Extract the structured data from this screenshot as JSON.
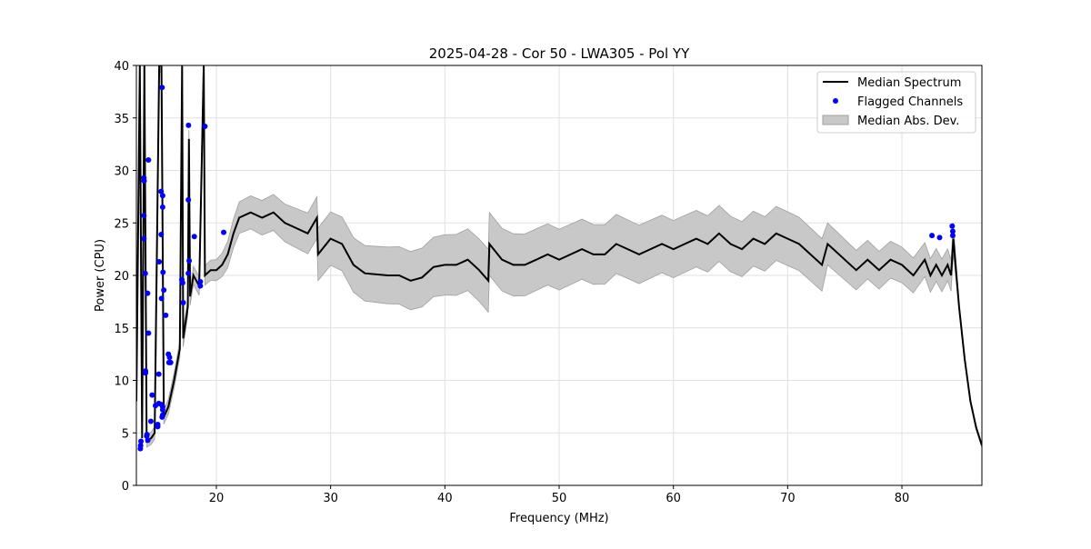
{
  "chart_data": {
    "type": "line",
    "title": "2025-04-28 - Cor 50 - LWA305 - Pol YY",
    "xlabel": "Frequency (MHz)",
    "ylabel": "Power (CPU)",
    "xlim": [
      13,
      87
    ],
    "ylim": [
      0,
      40
    ],
    "xticks": [
      20,
      30,
      40,
      50,
      60,
      70,
      80
    ],
    "yticks": [
      0,
      5,
      10,
      15,
      20,
      25,
      30,
      35,
      40
    ],
    "grid": true,
    "legend_position": "top-right",
    "legend": [
      "Median Spectrum",
      "Flagged Channels",
      "Median Abs. Dev."
    ],
    "colors": {
      "median": "#000000",
      "flagged": "#0000ff",
      "mad": "#c8c8c8"
    },
    "median_spectrum": [
      [
        13.0,
        8
      ],
      [
        13.3,
        40
      ],
      [
        13.5,
        4.5
      ],
      [
        13.7,
        40
      ],
      [
        13.9,
        4.2
      ],
      [
        14.3,
        4.5
      ],
      [
        14.6,
        5
      ],
      [
        15.0,
        40
      ],
      [
        15.2,
        40
      ],
      [
        15.4,
        6.5
      ],
      [
        15.8,
        7.5
      ],
      [
        16.3,
        10
      ],
      [
        16.8,
        13
      ],
      [
        17.0,
        40
      ],
      [
        17.1,
        14
      ],
      [
        17.5,
        17
      ],
      [
        17.6,
        33
      ],
      [
        17.7,
        18
      ],
      [
        18,
        20
      ],
      [
        18.5,
        19
      ],
      [
        18.9,
        40
      ],
      [
        19.0,
        20
      ],
      [
        19.5,
        20.5
      ],
      [
        20,
        20.5
      ],
      [
        20.5,
        21
      ],
      [
        21,
        22
      ],
      [
        21.5,
        24
      ],
      [
        22,
        25.5
      ],
      [
        23,
        26
      ],
      [
        24,
        25.5
      ],
      [
        25,
        26
      ],
      [
        26,
        25
      ],
      [
        27,
        24.5
      ],
      [
        28,
        24
      ],
      [
        28.8,
        25.5
      ],
      [
        28.9,
        22
      ],
      [
        30,
        23.5
      ],
      [
        31,
        23
      ],
      [
        32,
        21
      ],
      [
        33,
        20.2
      ],
      [
        35,
        20
      ],
      [
        36,
        20
      ],
      [
        37,
        19.5
      ],
      [
        38,
        19.8
      ],
      [
        39,
        20.8
      ],
      [
        40,
        21
      ],
      [
        41,
        21
      ],
      [
        42,
        21.5
      ],
      [
        43,
        20.5
      ],
      [
        43.8,
        19.5
      ],
      [
        43.9,
        23
      ],
      [
        45,
        21.5
      ],
      [
        46,
        21
      ],
      [
        47,
        21
      ],
      [
        48,
        21.5
      ],
      [
        49,
        22
      ],
      [
        50,
        21.5
      ],
      [
        51,
        22
      ],
      [
        52,
        22.5
      ],
      [
        53,
        22
      ],
      [
        54,
        22
      ],
      [
        55,
        23
      ],
      [
        56,
        22.5
      ],
      [
        57,
        22
      ],
      [
        58,
        22.5
      ],
      [
        59,
        23
      ],
      [
        60,
        22.5
      ],
      [
        61,
        23
      ],
      [
        62,
        23.5
      ],
      [
        63,
        23
      ],
      [
        64,
        24
      ],
      [
        65,
        23
      ],
      [
        66,
        22.5
      ],
      [
        67,
        23.5
      ],
      [
        68,
        23
      ],
      [
        69,
        24
      ],
      [
        70,
        23.5
      ],
      [
        71,
        23
      ],
      [
        72,
        22
      ],
      [
        73,
        21
      ],
      [
        73.5,
        23
      ],
      [
        74,
        22.5
      ],
      [
        75,
        21.5
      ],
      [
        76,
        20.5
      ],
      [
        77,
        21.5
      ],
      [
        78,
        20.5
      ],
      [
        79,
        21.5
      ],
      [
        80,
        21
      ],
      [
        81,
        20
      ],
      [
        82,
        21.5
      ],
      [
        82.5,
        20
      ],
      [
        83,
        21
      ],
      [
        83.5,
        20
      ],
      [
        84,
        21
      ],
      [
        84.3,
        20
      ],
      [
        84.5,
        23.5
      ],
      [
        85,
        17
      ],
      [
        85.5,
        12
      ],
      [
        86,
        8
      ],
      [
        86.5,
        5.5
      ],
      [
        87,
        3.8
      ]
    ],
    "mad_halfwidth": [
      [
        13,
        0.5
      ],
      [
        20,
        1
      ],
      [
        22,
        1.5
      ],
      [
        28.8,
        2
      ],
      [
        28.9,
        2.5
      ],
      [
        43.8,
        3
      ],
      [
        43.9,
        3
      ],
      [
        73.4,
        2.5
      ],
      [
        73.5,
        2
      ],
      [
        84.5,
        1.5
      ],
      [
        85,
        0.2
      ],
      [
        87,
        0.2
      ]
    ],
    "flagged_channels": [
      [
        15.25,
        37.9
      ],
      [
        17.56,
        34.3
      ],
      [
        19.0,
        34.2
      ],
      [
        14.06,
        31.0
      ],
      [
        13.66,
        29.3
      ],
      [
        13.68,
        29.0
      ],
      [
        15.17,
        28.0
      ],
      [
        15.3,
        27.6
      ],
      [
        15.3,
        26.5
      ],
      [
        17.55,
        27.2
      ],
      [
        13.66,
        25.7
      ],
      [
        15.17,
        23.9
      ],
      [
        18.07,
        23.7
      ],
      [
        20.64,
        24.1
      ],
      [
        13.66,
        23.5
      ],
      [
        15.0,
        21.3
      ],
      [
        17.62,
        21.4
      ],
      [
        13.78,
        20.2
      ],
      [
        15.33,
        20.3
      ],
      [
        17.55,
        20.2
      ],
      [
        16.98,
        19.6
      ],
      [
        17.05,
        19.3
      ],
      [
        18.6,
        19.4
      ],
      [
        18.6,
        19.0
      ],
      [
        13.98,
        18.3
      ],
      [
        15.4,
        18.6
      ],
      [
        15.2,
        17.8
      ],
      [
        17.1,
        17.4
      ],
      [
        15.57,
        16.2
      ],
      [
        14.06,
        14.5
      ],
      [
        15.8,
        12.5
      ],
      [
        15.9,
        12.2
      ],
      [
        15.85,
        11.7
      ],
      [
        16.0,
        11.7
      ],
      [
        13.8,
        10.7
      ],
      [
        13.8,
        10.9
      ],
      [
        14.96,
        10.6
      ],
      [
        14.38,
        8.6
      ],
      [
        14.96,
        7.8
      ],
      [
        15.2,
        7.7
      ],
      [
        15.3,
        7.5
      ],
      [
        15.3,
        7.2
      ],
      [
        14.67,
        7.6
      ],
      [
        15.3,
        6.7
      ],
      [
        15.25,
        6.5
      ],
      [
        14.27,
        6.1
      ],
      [
        14.87,
        5.8
      ],
      [
        14.87,
        5.6
      ],
      [
        13.93,
        4.85
      ],
      [
        13.9,
        4.7
      ],
      [
        14.0,
        4.3
      ],
      [
        13.4,
        4.2
      ],
      [
        13.37,
        3.8
      ],
      [
        13.35,
        3.5
      ],
      [
        82.63,
        23.8
      ],
      [
        83.3,
        23.6
      ],
      [
        84.4,
        24.7
      ],
      [
        84.45,
        24.2
      ],
      [
        84.45,
        23.8
      ]
    ]
  }
}
